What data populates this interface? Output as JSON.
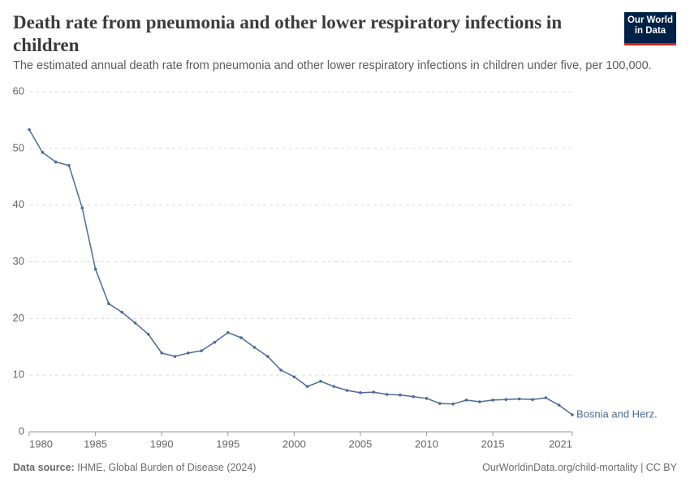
{
  "logo": [
    "Our World",
    "in Data"
  ],
  "chart_data": {
    "type": "line",
    "title": "Death rate from pneumonia and other lower respiratory infections in children",
    "subtitle": "The estimated annual death rate from pneumonia and other lower respiratory infections in children under five, per 100,000.",
    "source_label": "Data source:",
    "source": "IHME, Global Burden of Disease (2024)",
    "footer": "OurWorldinData.org/child-mortality | CC BY",
    "x": [
      1980,
      1981,
      1982,
      1983,
      1984,
      1985,
      1986,
      1987,
      1988,
      1989,
      1990,
      1991,
      1992,
      1993,
      1994,
      1995,
      1996,
      1997,
      1998,
      1999,
      2000,
      2001,
      2002,
      2003,
      2004,
      2005,
      2006,
      2007,
      2008,
      2009,
      2010,
      2011,
      2012,
      2013,
      2014,
      2015,
      2016,
      2017,
      2018,
      2019,
      2020,
      2021
    ],
    "series": [
      {
        "name": "Bosnia and Herz.",
        "color": "#4c6a9c",
        "values": [
          53.3,
          49.3,
          47.6,
          47.0,
          39.5,
          28.7,
          22.6,
          21.1,
          19.2,
          17.2,
          13.9,
          13.3,
          13.9,
          14.3,
          15.8,
          17.5,
          16.6,
          14.9,
          13.3,
          10.9,
          9.7,
          8.0,
          8.9,
          8.0,
          7.3,
          6.9,
          7.0,
          6.6,
          6.5,
          6.2,
          5.9,
          5.0,
          4.9,
          5.6,
          5.3,
          5.6,
          5.7,
          5.8,
          5.7,
          6.0,
          4.7,
          3.0
        ]
      }
    ],
    "xlim": [
      1980,
      2021
    ],
    "xticks": [
      1980,
      1985,
      1990,
      1995,
      2000,
      2005,
      2010,
      2015,
      2021
    ],
    "ylim": [
      0,
      60
    ],
    "yticks": [
      0,
      10,
      20,
      30,
      40,
      50,
      60
    ],
    "grid": true
  }
}
